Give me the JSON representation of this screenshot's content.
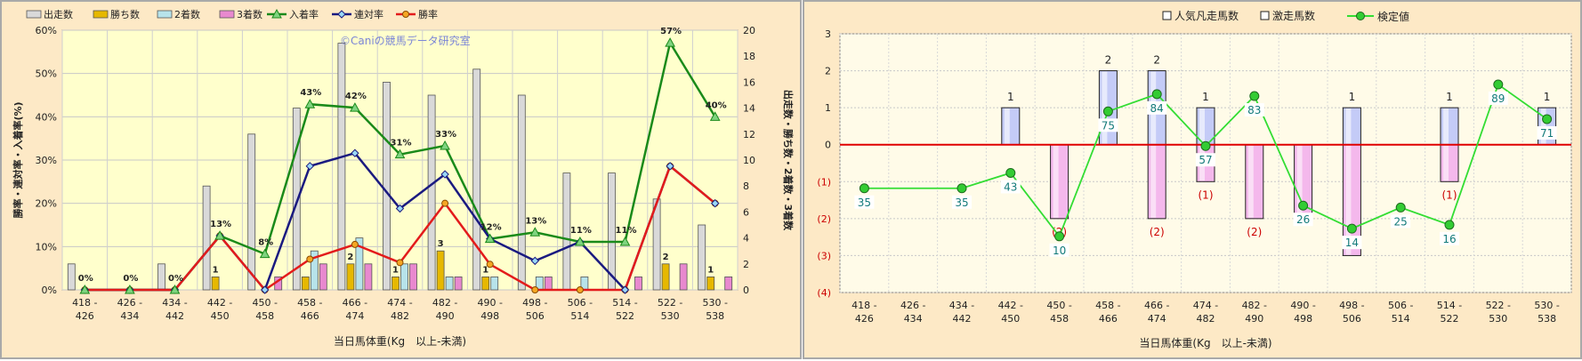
{
  "colors": {
    "panel_bg": "#fde9c6",
    "plot_bg_left": "#ffffcc",
    "plot_bg_right": "#fffbe8",
    "starts": "#d9d9d9",
    "wins": "#e6b800",
    "seconds": "#b7e3ea",
    "thirds": "#e889cf",
    "place_rate": "#1a8a1a",
    "rentai_rate": "#1a1a80",
    "win_rate": "#e31b1b",
    "popular_bar": "#5b6ee0",
    "ana_bar_neg": "#d860d0",
    "kentei": "#33dd33",
    "kentei_label": "#127a7a",
    "neg_label": "#cc0000",
    "zero_line": "#e00000"
  },
  "chart_data": [
    {
      "type": "bar",
      "id": "left",
      "legend": [
        "出走数",
        "勝ち数",
        "2着数",
        "3着数",
        "入着率",
        "連対率",
        "勝率"
      ],
      "watermark": "©Caniの競馬データ研究室",
      "xlabel": "当日馬体重(Kg　以上-未満)",
      "ylabel_left": "勝率・連対率・入着率(%)",
      "ylabel_right": "出走数・勝ち数・2着数・3着数",
      "y_left_ticks": [
        "0%",
        "10%",
        "20%",
        "30%",
        "40%",
        "50%",
        "60%"
      ],
      "y_left_range": [
        0,
        60
      ],
      "y_right_ticks": [
        "0",
        "2",
        "4",
        "6",
        "8",
        "10",
        "12",
        "14",
        "16",
        "18",
        "20"
      ],
      "y_right_range": [
        0,
        20
      ],
      "categories_top": [
        "418 -",
        "426 -",
        "434 -",
        "442 -",
        "450 -",
        "458 -",
        "466 -",
        "474 -",
        "482 -",
        "490 -",
        "498 -",
        "506 -",
        "514 -",
        "522 -",
        "530 -"
      ],
      "categories_bottom": [
        "426",
        "434",
        "442",
        "450",
        "458",
        "466",
        "474",
        "482",
        "490",
        "498",
        "506",
        "514",
        "522",
        "530",
        "538"
      ],
      "starts": [
        2,
        0,
        2,
        8,
        12,
        14,
        19,
        16,
        15,
        17,
        15,
        9,
        9,
        7,
        5
      ],
      "wins": [
        0,
        0,
        0,
        1,
        0,
        1,
        2,
        1,
        3,
        1,
        0,
        0,
        0,
        2,
        1
      ],
      "seconds": [
        0,
        0,
        0,
        0,
        0,
        3,
        4,
        2,
        1,
        1,
        1,
        1,
        0,
        0,
        0
      ],
      "thirds": [
        0,
        0,
        0,
        0,
        1,
        2,
        2,
        2,
        1,
        0,
        1,
        0,
        1,
        2,
        1
      ],
      "win_labels": [
        "",
        "",
        "",
        "1",
        "",
        "",
        "2",
        "1",
        "3",
        "1",
        "",
        "",
        "",
        "2",
        "1"
      ],
      "place_rate": [
        0,
        0,
        0,
        12.5,
        8.3,
        42.9,
        42.1,
        31.3,
        33.3,
        11.8,
        13.3,
        11.1,
        11.1,
        57.1,
        40
      ],
      "place_rate_labels": [
        "0%",
        "0%",
        "0%",
        "13%",
        "8%",
        "43%",
        "42%",
        "31%",
        "33%",
        "12%",
        "13%",
        "11%",
        "11%",
        "57%",
        "40%"
      ],
      "rentai_rate": [
        0,
        0,
        0,
        12.5,
        0,
        28.6,
        31.6,
        18.8,
        26.7,
        11.8,
        6.7,
        11.1,
        0,
        28.6,
        20
      ],
      "win_rate": [
        0,
        0,
        0,
        12.5,
        0,
        7.1,
        10.5,
        6.3,
        20,
        5.9,
        0,
        0,
        0,
        28.6,
        20
      ]
    },
    {
      "type": "bar",
      "id": "right",
      "legend": [
        "人気凡走馬数",
        "激走馬数",
        "検定値"
      ],
      "xlabel": "当日馬体重(Kg　以上-未満)",
      "y_ticks": [
        "3",
        "2",
        "1",
        "0",
        "(1)",
        "(2)",
        "(3)",
        "(4)"
      ],
      "y_range": [
        -4,
        3
      ],
      "categories_top": [
        "418 -",
        "426 -",
        "434 -",
        "442 -",
        "450 -",
        "458 -",
        "466 -",
        "474 -",
        "482 -",
        "490 -",
        "498 -",
        "506 -",
        "514 -",
        "522 -",
        "530 -"
      ],
      "categories_bottom": [
        "426",
        "434",
        "442",
        "450",
        "458",
        "466",
        "474",
        "482",
        "490",
        "498",
        "506",
        "514",
        "522",
        "530",
        "538"
      ],
      "ana": [
        0,
        0,
        0,
        1,
        0,
        2,
        2,
        1,
        0,
        0,
        1,
        0,
        1,
        0,
        1
      ],
      "ana_labels": [
        "",
        "",
        "",
        "1",
        "",
        "2",
        "2",
        "1",
        "",
        "",
        "1",
        "",
        "1",
        "",
        "1"
      ],
      "popular_fail": [
        0,
        0,
        0,
        0,
        -2,
        0,
        -2,
        -1,
        -2,
        -2,
        -3,
        0,
        -1,
        0,
        0
      ],
      "popular_fail_labels": [
        "",
        "",
        "",
        "",
        "(2)",
        "",
        "(2)",
        "(1)",
        "(2)",
        "",
        "",
        "",
        "(1)",
        "",
        ""
      ],
      "kentei": [
        35,
        null,
        35,
        43,
        10,
        75,
        84,
        57,
        83,
        26,
        14,
        25,
        16,
        89,
        71
      ],
      "kentei_labels": [
        "35",
        "",
        "35",
        "43",
        "10",
        "75",
        "84",
        "57",
        "83",
        "26",
        "14",
        "25",
        "16",
        "89",
        "71"
      ]
    }
  ]
}
